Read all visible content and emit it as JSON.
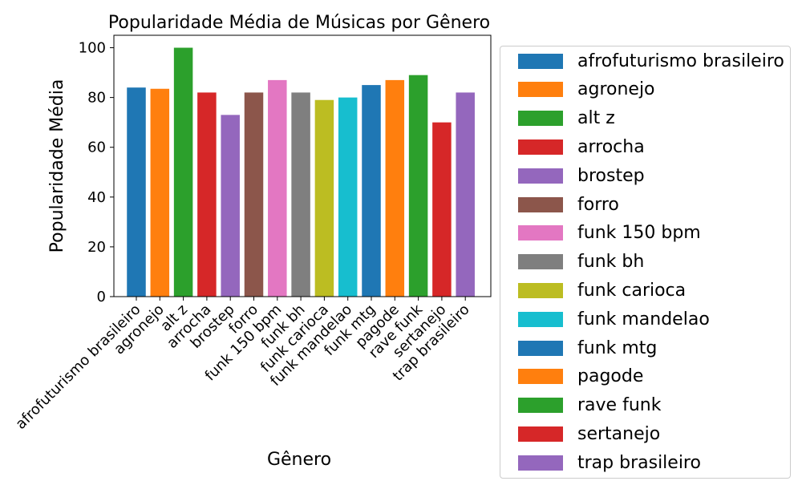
{
  "chart_data": {
    "type": "bar",
    "title": "Popularidade Média de Músicas por Gênero",
    "xlabel": "Gênero",
    "ylabel": "Popularidade Média",
    "categories": [
      "afrofuturismo brasileiro",
      "agronejo",
      "alt z",
      "arrocha",
      "brostep",
      "forro",
      "funk 150 bpm",
      "funk bh",
      "funk carioca",
      "funk mandelao",
      "funk mtg",
      "pagode",
      "rave funk",
      "sertanejo",
      "trap brasileiro"
    ],
    "values": [
      84,
      83.5,
      100,
      82,
      73,
      82,
      87,
      82,
      79,
      80,
      85,
      87,
      89,
      70,
      82
    ],
    "colors": [
      "#1f77b4",
      "#ff7f0e",
      "#2ca02c",
      "#d62728",
      "#9467bd",
      "#8c564b",
      "#e377c2",
      "#7f7f7f",
      "#bcbd22",
      "#17becf",
      "#1f77b4",
      "#ff7f0e",
      "#2ca02c",
      "#d62728",
      "#9467bd"
    ],
    "ylim": [
      0,
      105
    ],
    "yticks": [
      0,
      20,
      40,
      60,
      80,
      100
    ],
    "grid": false,
    "legend_placement": "outside-right"
  }
}
